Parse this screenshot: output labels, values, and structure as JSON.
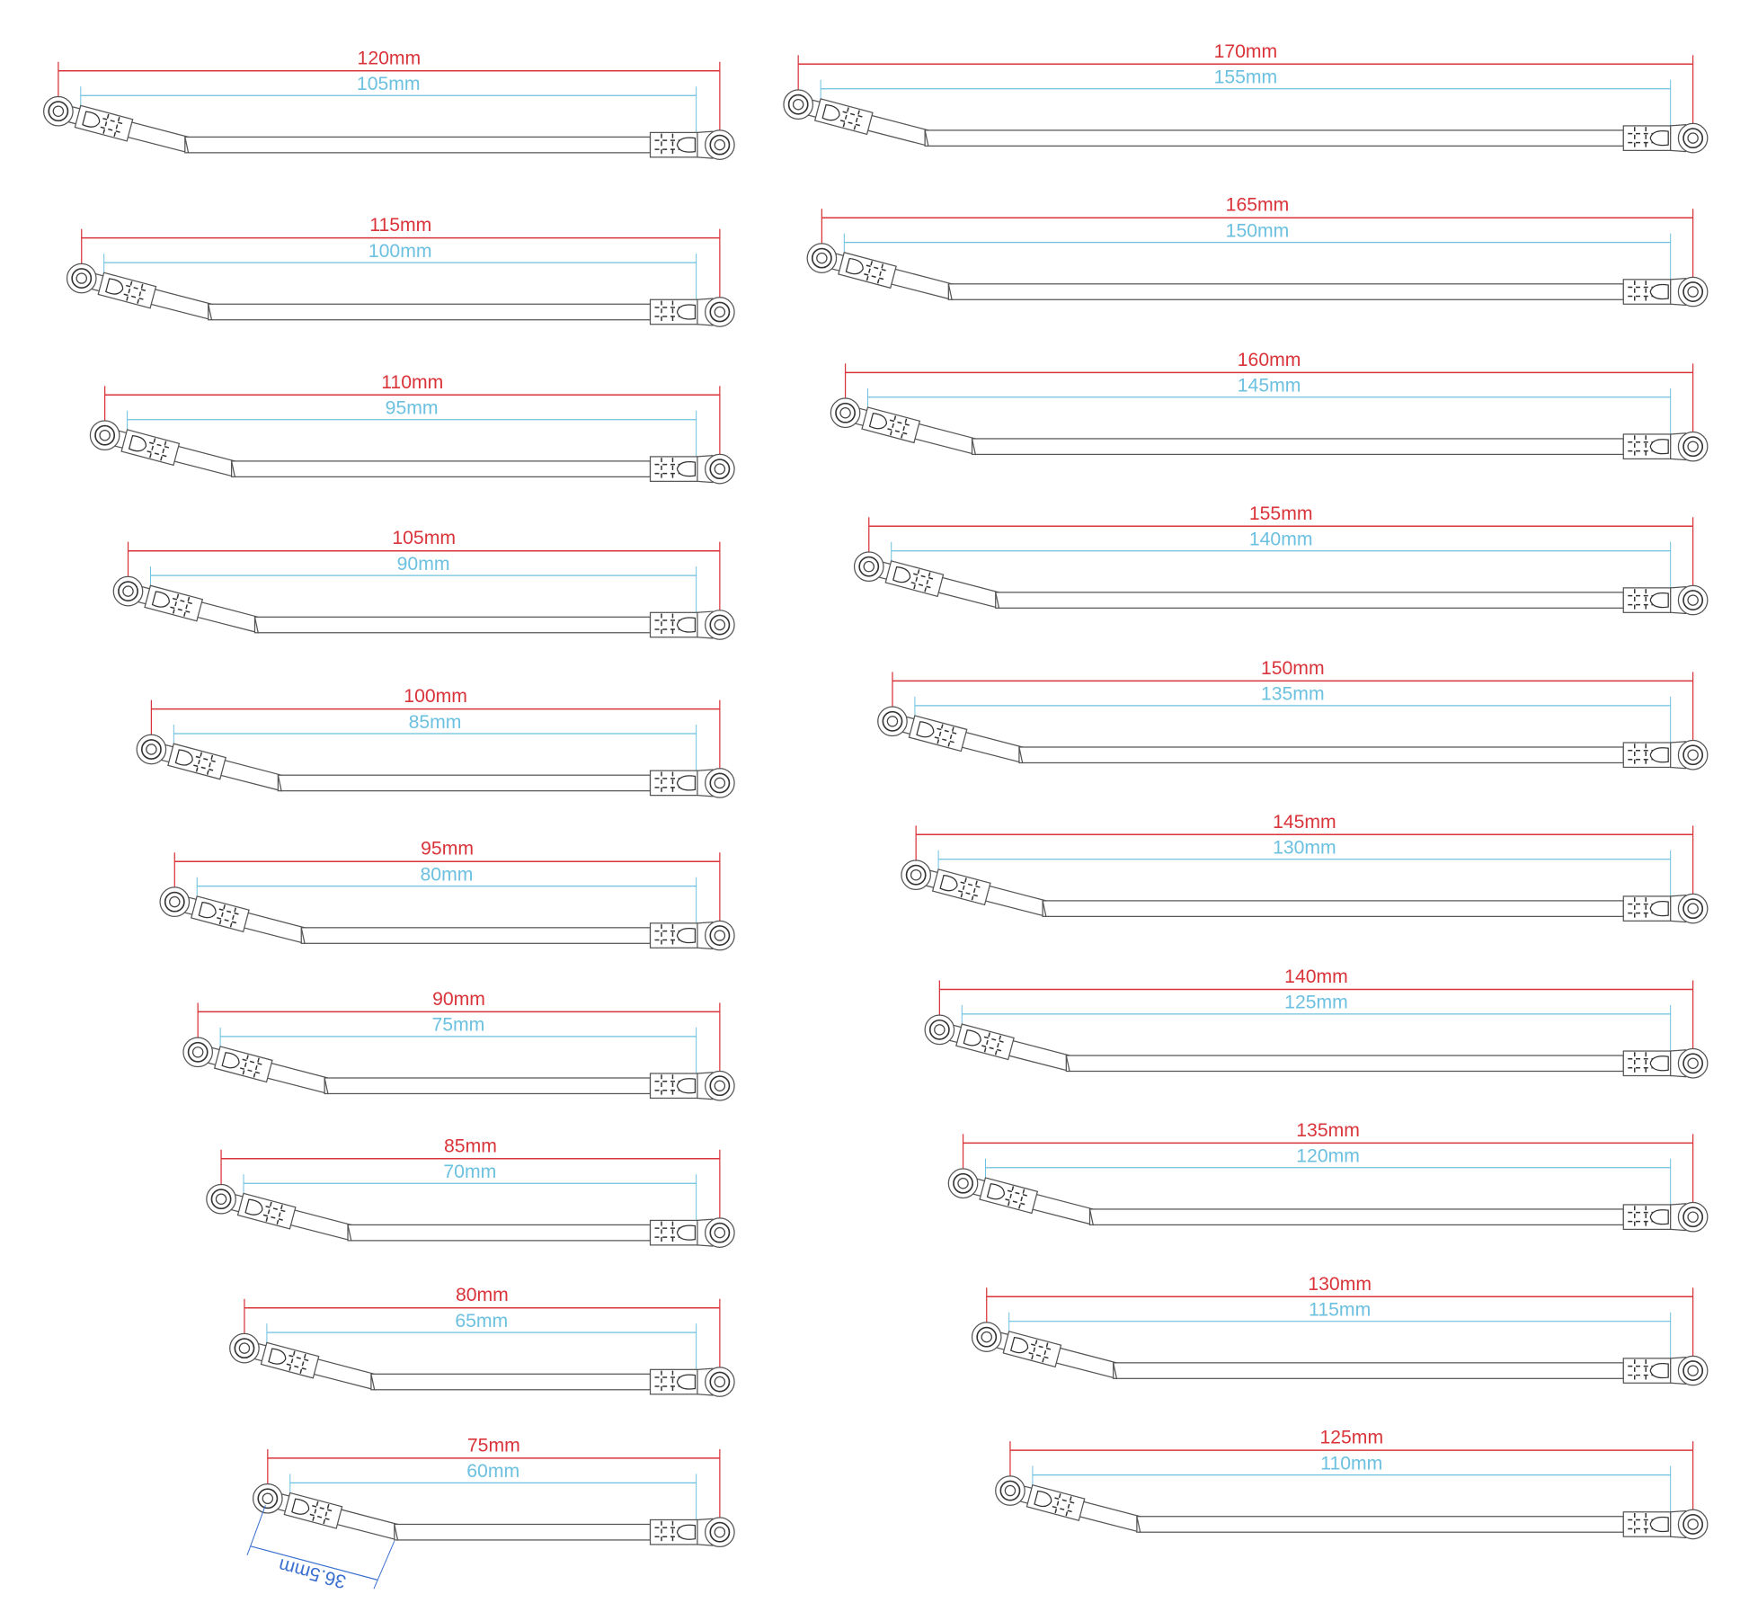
{
  "colors": {
    "outer_dimension": "#d9343a",
    "inner_dimension": "#6cc0e0",
    "angle_dimension": "#3a6fd0",
    "part_outline": "#555555"
  },
  "columns": [
    {
      "name": "left",
      "rods": [
        {
          "outer": "120mm",
          "inner": "105mm",
          "outer_mm": 120
        },
        {
          "outer": "115mm",
          "inner": "100mm",
          "outer_mm": 115
        },
        {
          "outer": "110mm",
          "inner": "95mm",
          "outer_mm": 110
        },
        {
          "outer": "105mm",
          "inner": "90mm",
          "outer_mm": 105
        },
        {
          "outer": "100mm",
          "inner": "85mm",
          "outer_mm": 100
        },
        {
          "outer": "95mm",
          "inner": "80mm",
          "outer_mm": 95
        },
        {
          "outer": "90mm",
          "inner": "75mm",
          "outer_mm": 90
        },
        {
          "outer": "85mm",
          "inner": "70mm",
          "outer_mm": 85
        },
        {
          "outer": "80mm",
          "inner": "65mm",
          "outer_mm": 80
        },
        {
          "outer": "75mm",
          "inner": "60mm",
          "outer_mm": 75,
          "bend_arm": "36.5mm"
        }
      ]
    },
    {
      "name": "right",
      "rods": [
        {
          "outer": "170mm",
          "inner": "155mm",
          "outer_mm": 170
        },
        {
          "outer": "165mm",
          "inner": "150mm",
          "outer_mm": 165
        },
        {
          "outer": "160mm",
          "inner": "145mm",
          "outer_mm": 160
        },
        {
          "outer": "155mm",
          "inner": "140mm",
          "outer_mm": 155
        },
        {
          "outer": "150mm",
          "inner": "135mm",
          "outer_mm": 150
        },
        {
          "outer": "145mm",
          "inner": "130mm",
          "outer_mm": 145
        },
        {
          "outer": "140mm",
          "inner": "125mm",
          "outer_mm": 140
        },
        {
          "outer": "135mm",
          "inner": "120mm",
          "outer_mm": 135
        },
        {
          "outer": "130mm",
          "inner": "115mm",
          "outer_mm": 130
        },
        {
          "outer": "125mm",
          "inner": "110mm",
          "outer_mm": 125
        }
      ]
    }
  ]
}
